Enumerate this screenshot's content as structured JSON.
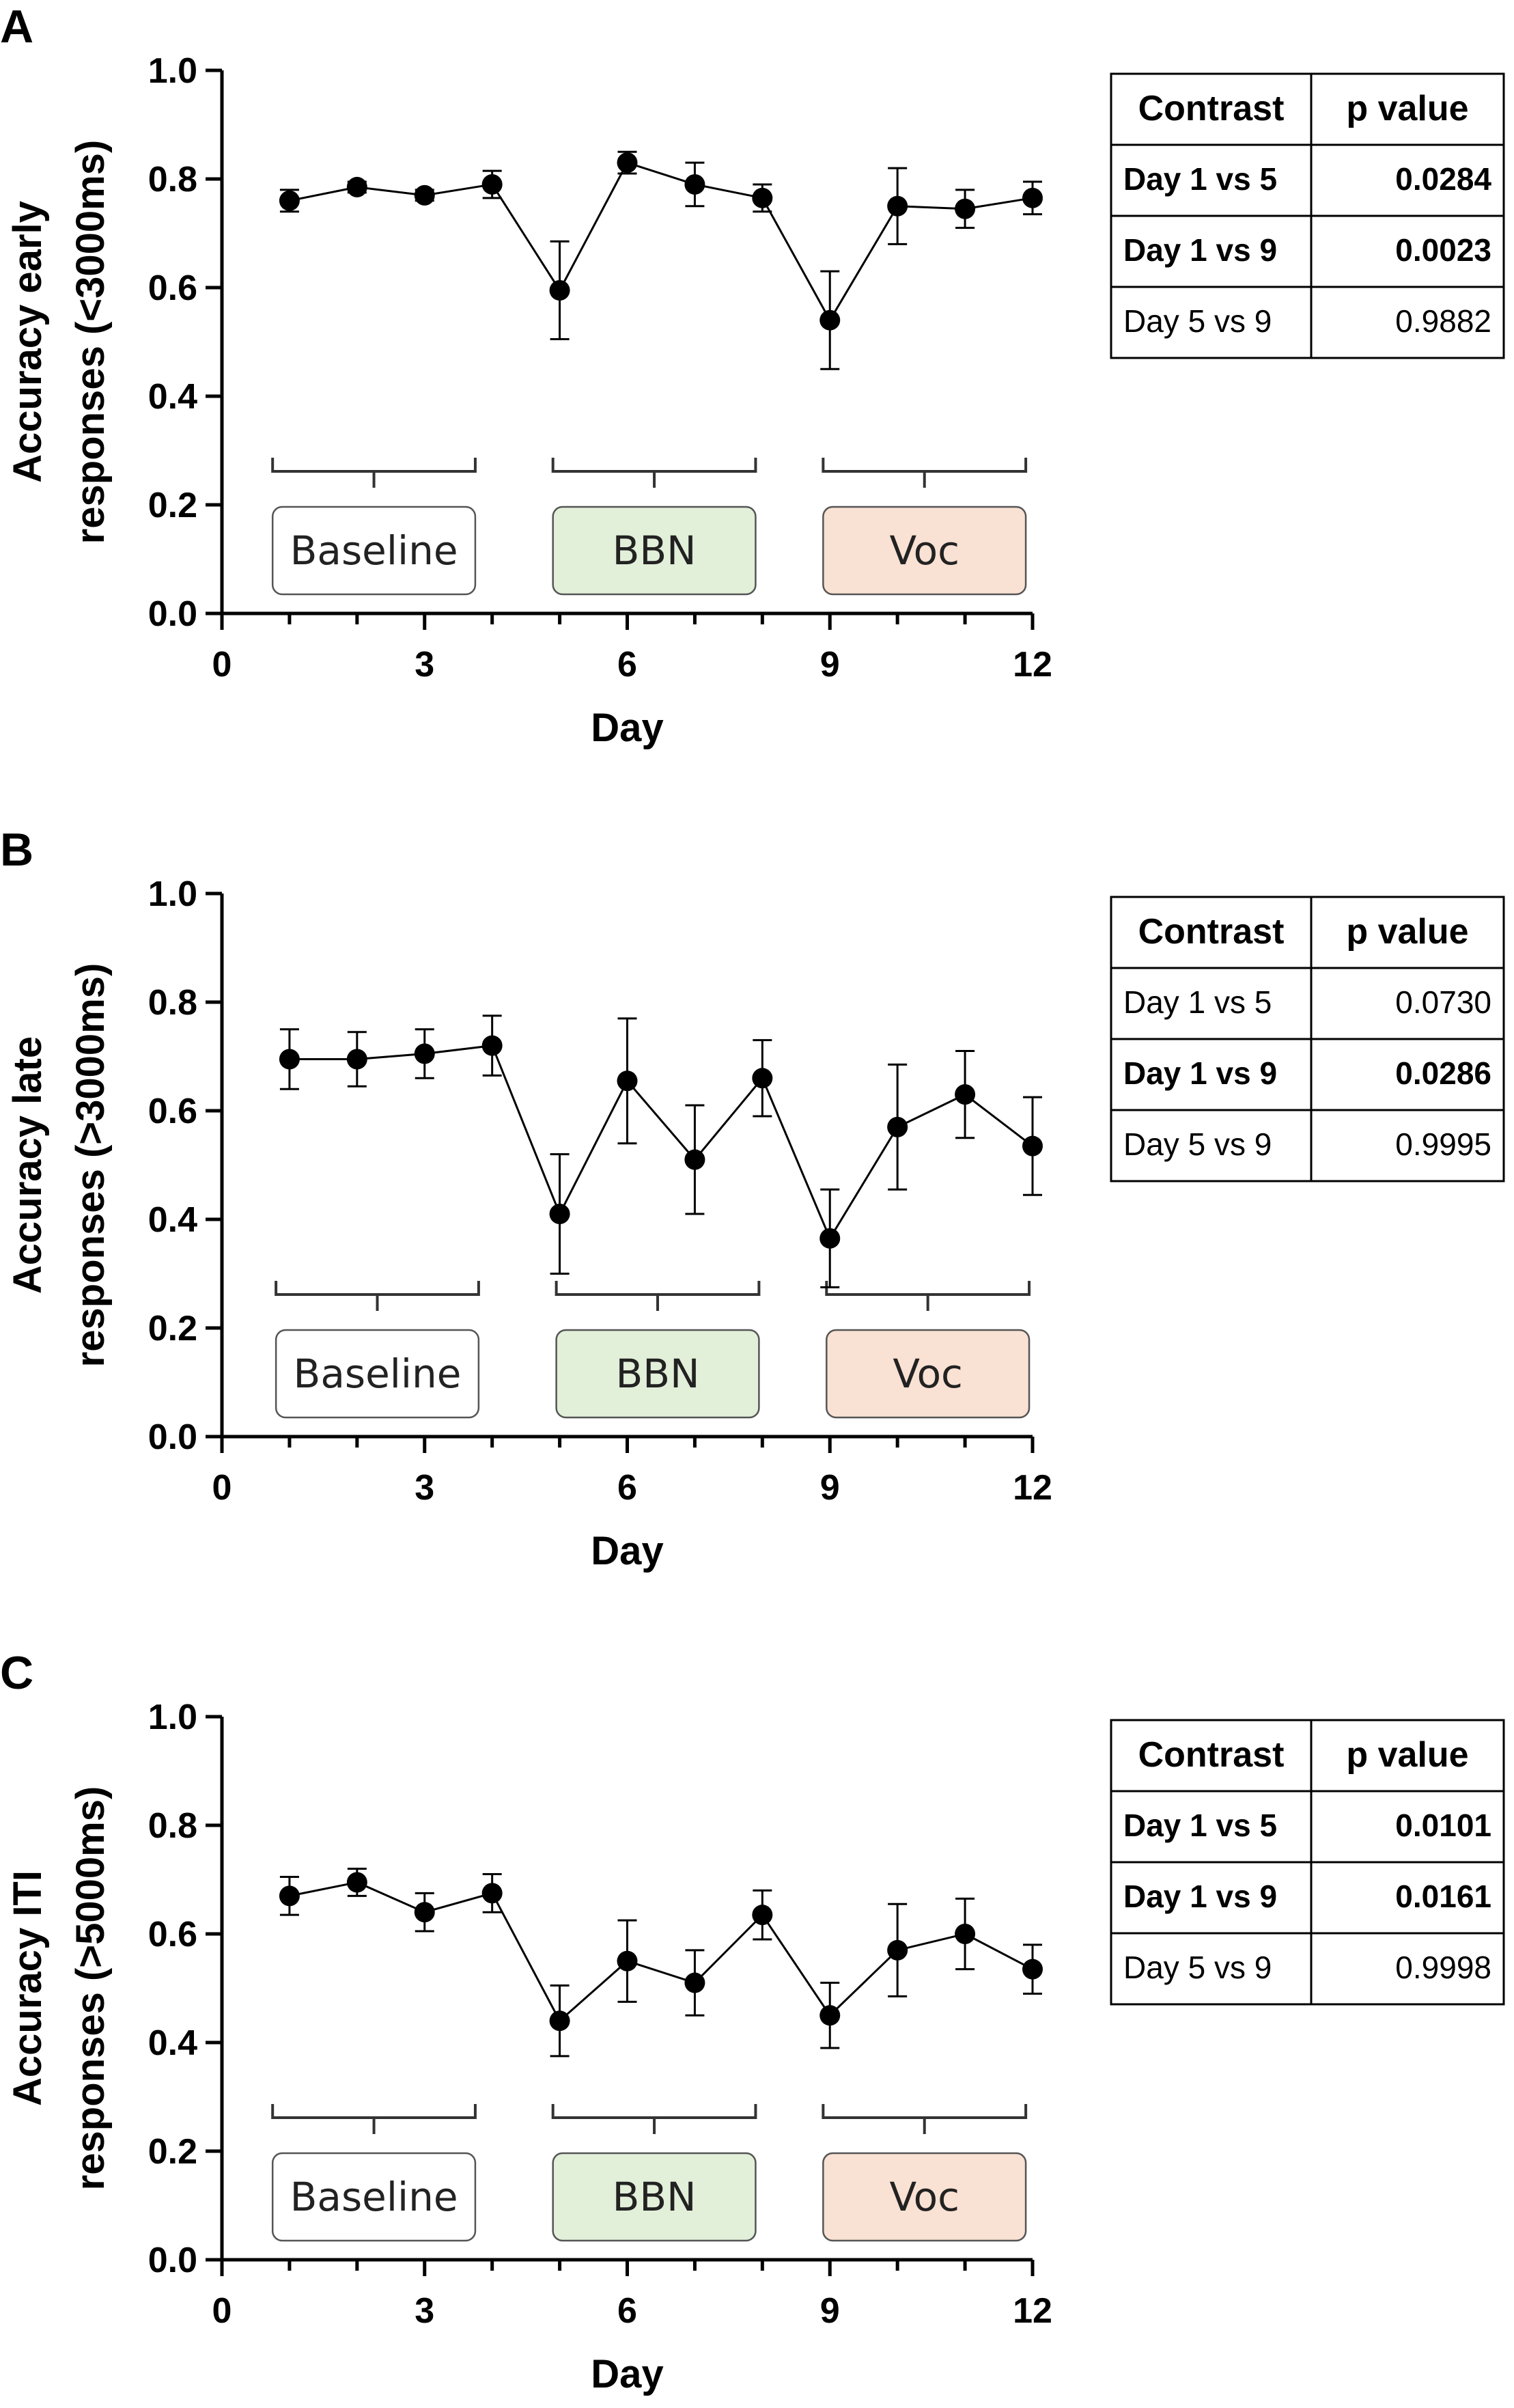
{
  "chart_data": [
    {
      "panel": "A",
      "type": "line",
      "xlabel": "Day",
      "ylabel": [
        "Accuracy early",
        "responses (<3000ms)"
      ],
      "xlim": [
        0,
        12
      ],
      "ylim": [
        0,
        1.0
      ],
      "xticks": [
        "0",
        "3",
        "6",
        "9",
        "12"
      ],
      "yticks": [
        "0.0",
        "0.2",
        "0.4",
        "0.6",
        "0.8",
        "1.0"
      ],
      "x": [
        1,
        2,
        3,
        4,
        5,
        6,
        7,
        8,
        9,
        10,
        11,
        12
      ],
      "y": [
        0.76,
        0.785,
        0.77,
        0.79,
        0.595,
        0.83,
        0.79,
        0.765,
        0.54,
        0.75,
        0.745,
        0.765
      ],
      "err": [
        0.02,
        0.01,
        0.01,
        0.025,
        0.09,
        0.02,
        0.04,
        0.025,
        0.09,
        0.07,
        0.035,
        0.03
      ],
      "periods": [
        {
          "label": "Baseline",
          "x_range": [
            0.75,
            3.75
          ],
          "color": "#ffffff"
        },
        {
          "label": "BBN",
          "x_range": [
            4.9,
            7.9
          ],
          "color": "#e2efd9"
        },
        {
          "label": "Voc",
          "x_range": [
            8.9,
            11.9
          ],
          "color": "#f9e1d3"
        }
      ],
      "table": {
        "headers": [
          "Contrast",
          "p value"
        ],
        "rows": [
          {
            "contrast": "Day 1 vs 5",
            "p": "0.0284",
            "significant": true
          },
          {
            "contrast": "Day 1 vs 9",
            "p": "0.0023",
            "significant": true
          },
          {
            "contrast": "Day 5 vs 9",
            "p": "0.9882",
            "significant": false
          }
        ]
      }
    },
    {
      "panel": "B",
      "type": "line",
      "xlabel": "Day",
      "ylabel": [
        "Accuracy late",
        "responses (>3000ms)"
      ],
      "xlim": [
        0,
        12
      ],
      "ylim": [
        0,
        1.0
      ],
      "xticks": [
        "0",
        "3",
        "6",
        "9",
        "12"
      ],
      "yticks": [
        "0.0",
        "0.2",
        "0.4",
        "0.6",
        "0.8",
        "1.0"
      ],
      "x": [
        1,
        2,
        3,
        4,
        5,
        6,
        7,
        8,
        9,
        10,
        11,
        12
      ],
      "y": [
        0.695,
        0.695,
        0.705,
        0.72,
        0.41,
        0.655,
        0.51,
        0.66,
        0.365,
        0.57,
        0.63,
        0.535
      ],
      "err": [
        0.055,
        0.05,
        0.045,
        0.055,
        0.11,
        0.115,
        0.1,
        0.07,
        0.09,
        0.115,
        0.08,
        0.09
      ],
      "periods": [
        {
          "label": "Baseline",
          "x_range": [
            0.8,
            3.8
          ],
          "color": "#ffffff"
        },
        {
          "label": "BBN",
          "x_range": [
            4.95,
            7.95
          ],
          "color": "#e2efd9"
        },
        {
          "label": "Voc",
          "x_range": [
            8.95,
            11.95
          ],
          "color": "#f9e1d3"
        }
      ],
      "table": {
        "headers": [
          "Contrast",
          "p value"
        ],
        "rows": [
          {
            "contrast": "Day 1 vs 5",
            "p": "0.0730",
            "significant": false
          },
          {
            "contrast": "Day 1 vs 9",
            "p": "0.0286",
            "significant": true
          },
          {
            "contrast": "Day 5 vs 9",
            "p": "0.9995",
            "significant": false
          }
        ]
      }
    },
    {
      "panel": "C",
      "type": "line",
      "xlabel": "Day",
      "ylabel": [
        "Accuracy ITI",
        "responses (>5000ms)"
      ],
      "xlim": [
        0,
        12
      ],
      "ylim": [
        0,
        1.0
      ],
      "xticks": [
        "0",
        "3",
        "6",
        "9",
        "12"
      ],
      "yticks": [
        "0.0",
        "0.2",
        "0.4",
        "0.6",
        "0.8",
        "1.0"
      ],
      "x": [
        1,
        2,
        3,
        4,
        5,
        6,
        7,
        8,
        9,
        10,
        11,
        12
      ],
      "y": [
        0.67,
        0.695,
        0.64,
        0.675,
        0.44,
        0.55,
        0.51,
        0.635,
        0.45,
        0.57,
        0.6,
        0.535
      ],
      "err": [
        0.035,
        0.025,
        0.035,
        0.035,
        0.065,
        0.075,
        0.06,
        0.045,
        0.06,
        0.085,
        0.065,
        0.045
      ],
      "periods": [
        {
          "label": "Baseline",
          "x_range": [
            0.75,
            3.75
          ],
          "color": "#ffffff"
        },
        {
          "label": "BBN",
          "x_range": [
            4.9,
            7.9
          ],
          "color": "#e2efd9"
        },
        {
          "label": "Voc",
          "x_range": [
            8.9,
            11.9
          ],
          "color": "#f9e1d3"
        }
      ],
      "table": {
        "headers": [
          "Contrast",
          "p value"
        ],
        "rows": [
          {
            "contrast": "Day 1 vs 5",
            "p": "0.0101",
            "significant": true
          },
          {
            "contrast": "Day 1 vs 9",
            "p": "0.0161",
            "significant": true
          },
          {
            "contrast": "Day 5 vs 9",
            "p": "0.9998",
            "significant": false
          }
        ]
      }
    }
  ]
}
